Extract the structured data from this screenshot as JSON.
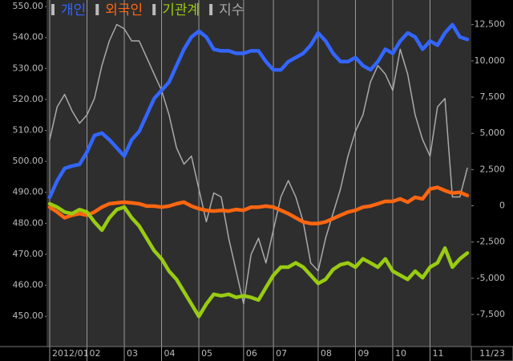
{
  "chart_data": {
    "type": "line",
    "legend": "top-left",
    "grid": true,
    "categories": [
      "2012/01",
      null,
      null,
      null,
      null,
      "02",
      null,
      null,
      null,
      null,
      "03",
      null,
      null,
      null,
      null,
      "04",
      null,
      null,
      null,
      null,
      "05",
      null,
      null,
      null,
      null,
      null,
      "06",
      null,
      null,
      null,
      "07",
      null,
      null,
      null,
      null,
      null,
      "08",
      null,
      null,
      null,
      null,
      "09",
      null,
      null,
      null,
      null,
      "10",
      null,
      null,
      null,
      null,
      "11",
      null,
      null,
      null,
      null,
      "11/23"
    ],
    "ylim": [
      440.2,
      552.1
    ],
    "yticks": [
      {
        "value": 450,
        "label": "450.00"
      },
      {
        "value": 460,
        "label": "460.00"
      },
      {
        "value": 470,
        "label": "470.00"
      },
      {
        "value": 480,
        "label": "480.00"
      },
      {
        "value": 490,
        "label": "490.00"
      },
      {
        "value": 500,
        "label": "500.00"
      },
      {
        "value": 510,
        "label": "510.00"
      },
      {
        "value": 520,
        "label": "520.00"
      },
      {
        "value": 530,
        "label": "530.00"
      },
      {
        "value": 540,
        "label": "540.00"
      },
      {
        "value": 550,
        "label": "550.00"
      }
    ],
    "y2lim": [
      -9711,
      14200
    ],
    "y2ticks": [
      {
        "value": -7500,
        "label": "-7,500"
      },
      {
        "value": -5000,
        "label": "-5,000"
      },
      {
        "value": -2500,
        "label": "-2,500"
      },
      0,
      {
        "value": 2500,
        "label": "2,500"
      },
      {
        "value": 5000,
        "label": "5,000"
      },
      {
        "value": 7500,
        "label": "7,500"
      },
      {
        "value": 10000,
        "label": "10,000"
      },
      {
        "value": 12500,
        "label": "12,500"
      }
    ],
    "series": [
      {
        "name": "개인",
        "color": "#3366ff",
        "axis": "y2",
        "values": [
          590,
          1730,
          2580,
          2750,
          2860,
          3710,
          4850,
          5020,
          4560,
          4000,
          3430,
          4560,
          5130,
          6260,
          7400,
          7960,
          8530,
          9670,
          10800,
          11650,
          12050,
          11650,
          10800,
          10690,
          10690,
          10520,
          10520,
          10690,
          10690,
          9950,
          9380,
          9380,
          9950,
          10230,
          10520,
          11080,
          11930,
          11370,
          10520,
          9950,
          9950,
          10230,
          9670,
          9380,
          9950,
          10800,
          10520,
          11370,
          11930,
          11650,
          10800,
          11370,
          11080,
          11930,
          12500,
          11650,
          11480
        ]
      },
      {
        "name": "외국인",
        "color": "#ff6611",
        "axis": "y2",
        "values": [
          -90,
          -430,
          -830,
          -650,
          -540,
          -650,
          -430,
          -90,
          140,
          200,
          250,
          200,
          140,
          -20,
          -20,
          -90,
          -20,
          140,
          250,
          -20,
          -200,
          -310,
          -360,
          -310,
          -360,
          -250,
          -310,
          -90,
          -90,
          -20,
          -90,
          -310,
          -540,
          -830,
          -1110,
          -1220,
          -1220,
          -1110,
          -880,
          -650,
          -430,
          -310,
          -90,
          -20,
          140,
          310,
          310,
          480,
          250,
          590,
          480,
          1160,
          1270,
          1050,
          880,
          930,
          710
        ]
      },
      {
        "name": "기관계",
        "color": "#99cc11",
        "axis": "y2",
        "values": [
          140,
          -90,
          -430,
          -540,
          -260,
          -430,
          -1110,
          -1680,
          -830,
          -260,
          -90,
          -830,
          -1390,
          -2240,
          -3090,
          -3660,
          -4510,
          -5080,
          -5930,
          -6780,
          -7630,
          -6780,
          -6100,
          -6210,
          -6100,
          -6320,
          -6210,
          -6320,
          -6500,
          -5640,
          -4790,
          -4230,
          -4230,
          -3940,
          -4230,
          -4790,
          -5360,
          -5080,
          -4400,
          -4060,
          -3940,
          -4230,
          -3660,
          -3940,
          -4230,
          -3660,
          -4510,
          -4790,
          -5080,
          -4510,
          -4960,
          -4230,
          -3940,
          -2920,
          -4230,
          -3660,
          -3260
        ]
      },
      {
        "name": "지수",
        "color": "#aaaaaa",
        "axis": "y",
        "values": [
          507.0,
          517.6,
          521.6,
          516.3,
          512.3,
          515.0,
          520.3,
          530.9,
          538.9,
          544.2,
          542.8,
          538.9,
          538.9,
          533.6,
          528.2,
          522.9,
          515.0,
          504.4,
          499.1,
          501.7,
          491.1,
          480.5,
          489.8,
          488.5,
          475.2,
          464.6,
          454.0,
          469.9,
          475.2,
          467.2,
          477.9,
          488.5,
          493.8,
          488.5,
          480.5,
          467.2,
          464.6,
          475.2,
          483.2,
          491.1,
          501.7,
          509.7,
          515.0,
          525.6,
          530.9,
          528.2,
          522.9,
          536.2,
          528.2,
          515.0,
          507.0,
          501.7,
          517.6,
          520.3,
          488.5,
          488.5,
          497.8
        ]
      }
    ]
  }
}
